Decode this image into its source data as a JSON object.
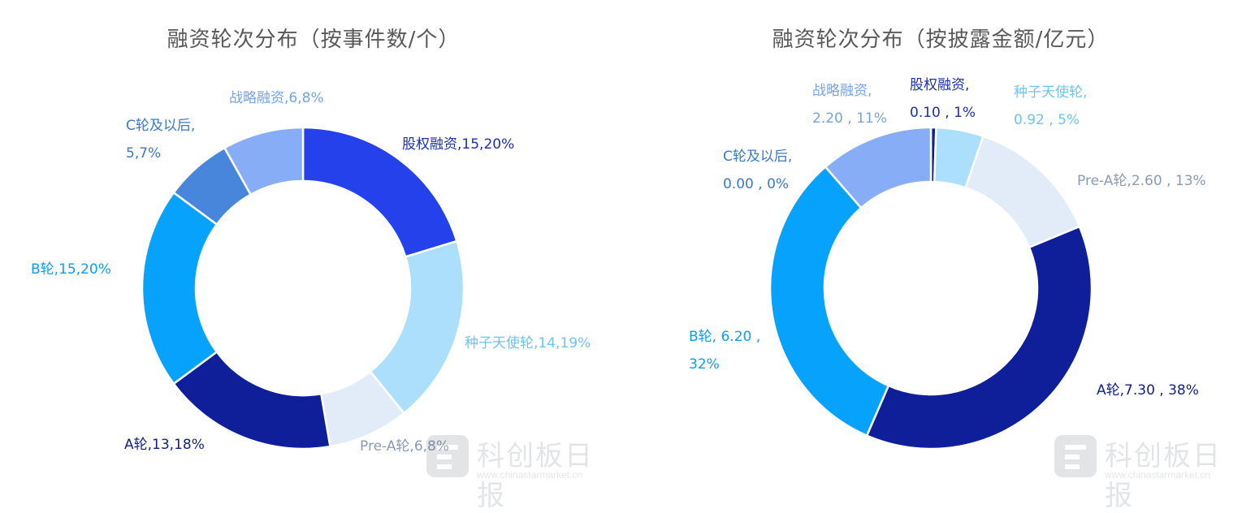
{
  "chart_data": [
    {
      "type": "pie",
      "title": "融资轮次分布（按事件数/个）",
      "series": [
        {
          "label": "股权融资",
          "value": 15,
          "percent": "20%",
          "color": "#2541eb",
          "text_color": "#1b2fb0",
          "text": "股权融资,15,20%"
        },
        {
          "label": "种子天使轮",
          "value": 14,
          "percent": "19%",
          "color": "#abdffc",
          "text_color": "#6fc3f0",
          "text": "种子天使轮,14,19%"
        },
        {
          "label": "Pre-A轮",
          "value": 6,
          "percent": "8%",
          "color": "#e2ecf8",
          "text_color": "#8a9bb5",
          "text": "Pre-A轮,6,8%"
        },
        {
          "label": "A轮",
          "value": 13,
          "percent": "18%",
          "color": "#0f1f9a",
          "text_color": "#0f1f8a",
          "text": "A轮,13,18%"
        },
        {
          "label": "B轮",
          "value": 15,
          "percent": "20%",
          "color": "#07a2fb",
          "text_color": "#0a9ef5",
          "text": "B轮,15,20%"
        },
        {
          "label": "C轮及以后",
          "value": 5,
          "percent": "7%",
          "color": "#4886db",
          "text_color": "#3b78cc",
          "text": [
            "C轮及以后,",
            "5,7%"
          ]
        },
        {
          "label": "战略融资",
          "value": 6,
          "percent": "8%",
          "color": "#86adf6",
          "text_color": "#74a3e8",
          "text": "战略融资,6,8%"
        }
      ]
    },
    {
      "type": "pie",
      "title": "融资轮次分布（按披露金额/亿元）",
      "series": [
        {
          "label": "股权融资",
          "value": 0.1,
          "percent": "1%",
          "color": "#0f1f9a",
          "text_color": "#1b2fb0",
          "text": [
            "股权融资,",
            "0.10 , 1%"
          ]
        },
        {
          "label": "种子天使轮",
          "value": 0.92,
          "percent": "5%",
          "color": "#abdffc",
          "text_color": "#6fc3f0",
          "text": [
            "种子天使轮,",
            "0.92 , 5%"
          ]
        },
        {
          "label": "Pre-A轮",
          "value": 2.6,
          "percent": "13%",
          "color": "#e2ecf8",
          "text_color": "#8a9bb5",
          "text": "Pre-A轮,2.60 , 13%"
        },
        {
          "label": "A轮",
          "value": 7.3,
          "percent": "38%",
          "color": "#0f1f9a",
          "text_color": "#0f1f8a",
          "text": "A轮,7.30 , 38%"
        },
        {
          "label": "B轮",
          "value": 6.2,
          "percent": "32%",
          "color": "#07a2fb",
          "text_color": "#0a9ef5",
          "text": [
            "B轮, 6.20 ,",
            "32%"
          ]
        },
        {
          "label": "C轮及以后",
          "value": 0.0,
          "percent": "0%",
          "color": "#4886db",
          "text_color": "#3b78cc",
          "text": [
            "C轮及以后,",
            "0.00 , 0%"
          ]
        },
        {
          "label": "战略融资",
          "value": 2.2,
          "percent": "11%",
          "color": "#86adf6",
          "text_color": "#74a3e8",
          "text": [
            "战略融资,",
            "2.20 , 11%"
          ]
        }
      ]
    }
  ],
  "watermark": {
    "name": "科创板日报",
    "url": "www.chinastarmarket.cn"
  }
}
